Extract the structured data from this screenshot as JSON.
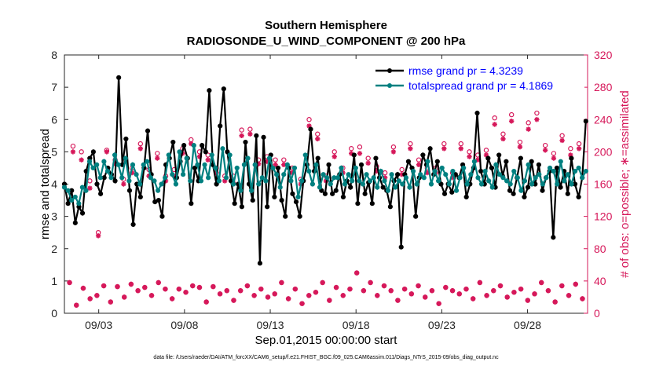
{
  "chart_data": {
    "type": "line",
    "title": "Southern Hemisphere",
    "subtitle": "RADIOSONDE_U_WIND_COMPONENT @ 200 hPa",
    "xlabel": "Sep.01,2015 00:00:00 start",
    "ylabel_left": "rmse and totalspread",
    "ylabel_right": "# of obs: o=possible; ∗=assimilated",
    "footer": "data file: /Users/raeder/DAI/ATM_forcXX/CAM6_setup/f.e21.FHIST_BGC.f09_025.CAM6assim.011/Diags_NTrS_2015-09/obs_diag_output.nc",
    "xlim": [
      1,
      31.5
    ],
    "ylim_left": [
      0,
      8
    ],
    "ylim_right": [
      0,
      320
    ],
    "x_ticks": [
      3,
      8,
      13,
      18,
      23,
      28
    ],
    "x_tick_labels": [
      "09/03",
      "09/08",
      "09/13",
      "09/18",
      "09/23",
      "09/28"
    ],
    "y_ticks_left": [
      0,
      1,
      2,
      3,
      4,
      5,
      6,
      7,
      8
    ],
    "y_ticks_right": [
      0,
      40,
      80,
      120,
      160,
      200,
      240,
      280,
      320
    ],
    "legend_position": "top-right",
    "colors": {
      "rmse": "#000000",
      "spread": "#008080",
      "obs": "#d6185a",
      "legend_text": "#0000ff"
    },
    "series": [
      {
        "name": "rmse grand pr = 4.3239",
        "key": "rmse",
        "values": [
          4.0,
          3.4,
          3.8,
          2.8,
          3.3,
          3.1,
          4.4,
          4.8,
          5.0,
          4.0,
          3.7,
          4.2,
          4.5,
          4.3,
          4.1,
          7.3,
          4.6,
          5.4,
          3.8,
          2.75,
          4.0,
          3.6,
          4.5,
          5.65,
          4.3,
          3.45,
          3.5,
          3.0,
          4.6,
          4.8,
          5.3,
          4.2,
          4.7,
          5.2,
          4.8,
          3.4,
          4.5,
          4.1,
          5.2,
          5.0,
          6.9,
          4.6,
          4.0,
          5.8,
          6.95,
          5.0,
          4.1,
          3.4,
          4.0,
          3.3,
          5.3,
          4.0,
          3.5,
          5.5,
          1.55,
          5.45,
          3.3,
          4.9,
          3.6,
          4.5,
          3.5,
          3.0,
          4.5,
          3.7,
          3.45,
          3.0,
          4.1,
          4.6,
          5.7,
          4.4,
          4.8,
          3.8,
          3.7,
          4.6,
          3.7,
          3.8,
          4.3,
          3.6,
          4.1,
          3.9,
          4.9,
          3.4,
          4.6,
          3.7,
          4.05,
          3.4,
          4.8,
          4.2,
          3.9,
          3.8,
          3.3,
          4.1,
          4.3,
          2.05,
          4.3,
          4.7,
          4.5,
          3.0,
          4.2,
          4.9,
          4.6,
          5.1,
          4.3,
          4.7,
          4.0,
          3.7,
          4.0,
          3.75,
          4.3,
          4.2,
          4.6,
          3.6,
          4.0,
          4.5,
          6.2,
          4.4,
          4.0,
          4.8,
          4.5,
          3.9,
          4.9,
          4.25,
          4.7,
          3.8,
          3.7,
          4.2,
          4.8,
          3.6,
          3.9,
          4.7,
          4.0,
          4.6,
          3.8,
          4.2,
          4.4,
          2.35,
          4.5,
          3.9,
          4.4,
          3.7,
          4.8,
          4.0,
          3.6,
          4.2,
          5.95
        ]
      },
      {
        "name": "totalspread grand pr = 4.1869",
        "key": "spread",
        "values": [
          3.9,
          3.8,
          3.5,
          3.6,
          3.4,
          3.9,
          3.8,
          4.7,
          4.5,
          4.6,
          4.2,
          4.7,
          4.4,
          4.2,
          4.9,
          4.6,
          4.2,
          4.8,
          4.1,
          4.6,
          4.3,
          4.0,
          4.6,
          4.7,
          4.2,
          4.1,
          3.8,
          4.0,
          4.2,
          4.9,
          4.3,
          4.0,
          5.0,
          4.3,
          4.8,
          4.1,
          5.2,
          4.6,
          4.1,
          4.6,
          4.2,
          4.9,
          4.5,
          4.1,
          5.1,
          4.2,
          4.9,
          4.0,
          4.5,
          3.8,
          4.6,
          4.8,
          3.8,
          4.6,
          4.0,
          4.2,
          4.1,
          4.8,
          4.5,
          4.3,
          3.9,
          4.3,
          4.6,
          4.1,
          4.5,
          3.6,
          4.1,
          4.9,
          4.4,
          4.0,
          4.6,
          3.9,
          4.3,
          4.2,
          4.0,
          4.2,
          4.2,
          4.5,
          4.0,
          4.3,
          4.1,
          4.5,
          4.1,
          4.0,
          4.3,
          4.1,
          4.2,
          3.9,
          4.4,
          4.1,
          3.8,
          4.3,
          3.9,
          4.1,
          4.0,
          4.2,
          3.9,
          4.4,
          4.0,
          4.3,
          4.2,
          4.7,
          4.0,
          4.4,
          4.1,
          4.5,
          4.3,
          4.0,
          4.4,
          3.8,
          4.2,
          4.5,
          4.0,
          4.3,
          4.7,
          4.2,
          4.0,
          4.4,
          4.1,
          3.9,
          4.6,
          4.3,
          4.2,
          4.1,
          4.0,
          4.4,
          4.2,
          3.8,
          4.1,
          4.6,
          4.0,
          4.2,
          4.3,
          4.0,
          4.2,
          4.5,
          4.4,
          4.0,
          4.7,
          4.1,
          4.3,
          4.0,
          4.4,
          4.5,
          4.2,
          4.4
        ]
      }
    ],
    "obs_possible_near": [
      207,
      200,
      164,
      100,
      202,
      190,
      166,
      180,
      210,
      178,
      198,
      170,
      178,
      204,
      215,
      200,
      196,
      180,
      170,
      170,
      227,
      228,
      190,
      194,
      190,
      190,
      180,
      166,
      240,
      222,
      170,
      200,
      180,
      204,
      206,
      192,
      182,
      174,
      206,
      178,
      210,
      190,
      180,
      180,
      210,
      174,
      210,
      200,
      196,
      202,
      242,
      222,
      246,
      212,
      236,
      248,
      208,
      198,
      220,
      204,
      210
    ],
    "obs_assimilated_near": [
      200,
      190,
      155,
      96,
      200,
      185,
      160,
      174,
      204,
      170,
      192,
      164,
      170,
      198,
      210,
      194,
      190,
      174,
      164,
      162,
      220,
      222,
      185,
      188,
      184,
      184,
      174,
      160,
      232,
      216,
      164,
      194,
      174,
      198,
      198,
      186,
      176,
      168,
      200,
      172,
      204,
      184,
      174,
      174,
      204,
      168,
      204,
      194,
      190,
      196,
      234,
      216,
      238,
      206,
      228,
      240,
      202,
      192,
      214,
      196,
      204
    ],
    "obs_far": [
      38,
      10,
      31,
      18,
      22,
      34,
      14,
      33,
      20,
      36,
      28,
      32,
      22,
      38,
      30,
      18,
      30,
      26,
      34,
      32,
      14,
      33,
      24,
      28,
      16,
      28,
      34,
      22,
      30,
      20,
      24,
      38,
      18,
      30,
      12,
      22,
      26,
      38,
      16,
      32,
      22,
      30,
      50,
      28,
      38,
      22,
      34,
      28,
      16,
      30,
      24,
      34,
      20,
      28,
      12,
      32,
      28,
      24,
      30,
      18,
      38,
      22,
      28,
      34,
      20,
      26,
      30,
      16,
      24,
      38,
      28,
      14,
      34,
      22,
      36,
      18
    ]
  }
}
